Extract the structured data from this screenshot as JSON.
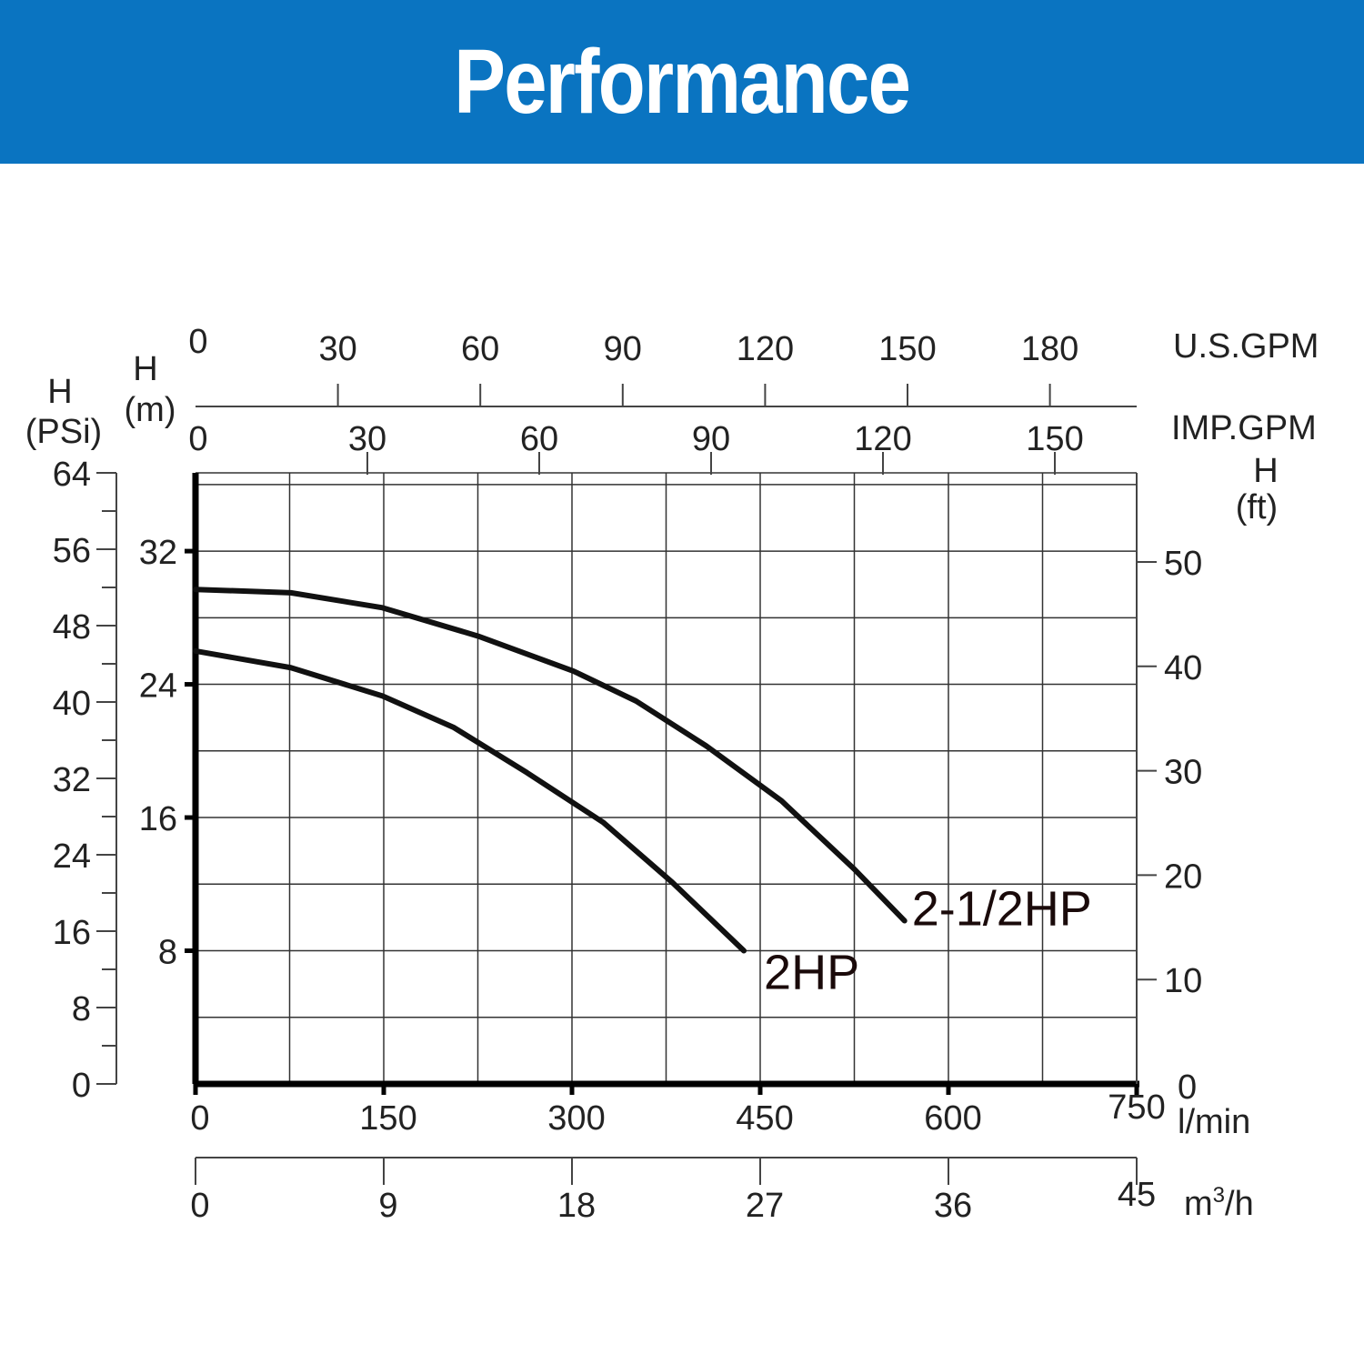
{
  "header": {
    "title": "Performance"
  },
  "chart_data": {
    "type": "line",
    "title": "Performance",
    "x_axis": {
      "label": "l/min",
      "range": [
        0,
        750
      ],
      "ticks": [
        0,
        150,
        300,
        450,
        600,
        750
      ]
    },
    "x_axis_m3h": {
      "label": "m3/h",
      "label_main": "m",
      "label_sup": "3",
      "label_tail": "/h",
      "range": [
        0,
        45
      ],
      "ticks": [
        0,
        9,
        18,
        27,
        36,
        45
      ]
    },
    "x_axis_usgpm": {
      "label": "U.S.GPM",
      "ticks": [
        0,
        30,
        60,
        90,
        120,
        150,
        180
      ]
    },
    "x_axis_impgpm": {
      "label": "IMP.GPM",
      "ticks": [
        0,
        30,
        60,
        90,
        120,
        150
      ]
    },
    "y_axis_m": {
      "label_top": "H",
      "label_bottom": "(m)",
      "range": [
        0,
        36.7
      ],
      "ticks": [
        8,
        16,
        24,
        32
      ]
    },
    "y_axis_psi": {
      "label_top": "H",
      "label_bottom": "(PSi)",
      "range": [
        0,
        64
      ],
      "ticks": [
        0,
        8,
        16,
        24,
        32,
        40,
        48,
        56,
        64
      ]
    },
    "y_axis_ft": {
      "label_top": "H",
      "label_bottom": "(ft)",
      "ticks": [
        0,
        10,
        20,
        30,
        40,
        50
      ]
    },
    "grid": true,
    "series": [
      {
        "name": "2-1/2HP",
        "x": [
          0,
          76,
          149,
          225,
          301,
          351,
          407,
          467,
          525,
          565
        ],
        "y": [
          29.7,
          29.5,
          28.6,
          26.9,
          24.8,
          23.0,
          20.3,
          17.0,
          12.9,
          9.8
        ]
      },
      {
        "name": "2HP",
        "x": [
          0,
          76,
          149,
          206,
          264,
          325,
          380,
          437
        ],
        "y": [
          26.0,
          25.0,
          23.3,
          21.4,
          18.7,
          15.7,
          12.1,
          8.0
        ]
      }
    ]
  }
}
